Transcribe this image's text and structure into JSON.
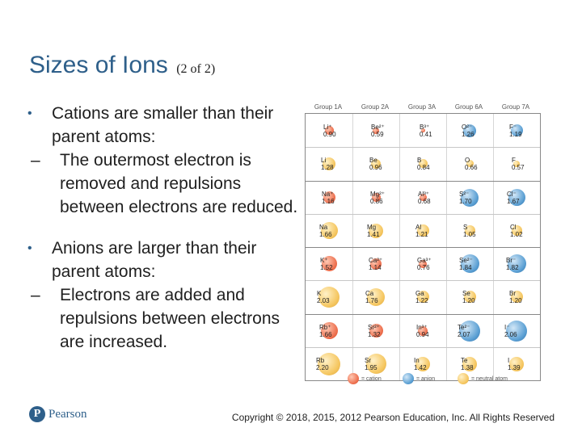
{
  "title": {
    "main": "Sizes of Ions",
    "sub": "(2 of 2)"
  },
  "bullets": [
    {
      "text": "Cations are smaller than their parent atoms:",
      "sub": "The outermost electron is removed and repulsions between electrons are reduced."
    },
    {
      "text": "Anions are larger than their parent atoms:",
      "sub": "Electrons are added and repulsions between electrons are increased."
    }
  ],
  "bullet_marker": "•",
  "sub_marker": "–",
  "table": {
    "groups": [
      "Group 1A",
      "Group 2A",
      "Group 3A",
      "Group 6A",
      "Group 7A"
    ],
    "rows": [
      [
        {
          "sym": "Li⁺",
          "val": "0.90",
          "kind": "cation",
          "size": 0.3
        },
        {
          "sym": "Be²⁺",
          "val": "0.59",
          "kind": "cation",
          "size": 0.22
        },
        {
          "sym": "B³⁺",
          "val": "0.41",
          "kind": "cation",
          "size": 0.15
        },
        {
          "sym": "O²⁻",
          "val": "1.26",
          "kind": "anion",
          "size": 0.45
        },
        {
          "sym": "F⁻",
          "val": "1.19",
          "kind": "anion",
          "size": 0.42
        }
      ],
      [
        {
          "sym": "Li",
          "val": "1.28",
          "kind": "neutral",
          "size": 0.45
        },
        {
          "sym": "Be",
          "val": "0.96",
          "kind": "neutral",
          "size": 0.34
        },
        {
          "sym": "B",
          "val": "0.84",
          "kind": "neutral",
          "size": 0.3
        },
        {
          "sym": "O",
          "val": "0.66",
          "kind": "neutral",
          "size": 0.24
        },
        {
          "sym": "F",
          "val": "0.57",
          "kind": "neutral",
          "size": 0.21
        }
      ],
      [
        {
          "sym": "Na⁺",
          "val": "1.16",
          "kind": "cation",
          "size": 0.41
        },
        {
          "sym": "Mg²⁺",
          "val": "0.86",
          "kind": "cation",
          "size": 0.31
        },
        {
          "sym": "Al³⁺",
          "val": "0.68",
          "kind": "cation",
          "size": 0.25
        },
        {
          "sym": "S²⁻",
          "val": "1.70",
          "kind": "anion",
          "size": 0.6
        },
        {
          "sym": "Cl⁻",
          "val": "1.67",
          "kind": "anion",
          "size": 0.59
        }
      ],
      [
        {
          "sym": "Na",
          "val": "1.66",
          "kind": "neutral",
          "size": 0.59
        },
        {
          "sym": "Mg",
          "val": "1.41",
          "kind": "neutral",
          "size": 0.5
        },
        {
          "sym": "Al",
          "val": "1.21",
          "kind": "neutral",
          "size": 0.43
        },
        {
          "sym": "S",
          "val": "1.05",
          "kind": "neutral",
          "size": 0.37
        },
        {
          "sym": "Cl",
          "val": "1.02",
          "kind": "neutral",
          "size": 0.36
        }
      ],
      [
        {
          "sym": "K⁺",
          "val": "1.52",
          "kind": "cation",
          "size": 0.54
        },
        {
          "sym": "Ca²⁺",
          "val": "1.14",
          "kind": "cation",
          "size": 0.4
        },
        {
          "sym": "Ga³⁺",
          "val": "0.76",
          "kind": "cation",
          "size": 0.27
        },
        {
          "sym": "Se²⁻",
          "val": "1.84",
          "kind": "anion",
          "size": 0.65
        },
        {
          "sym": "Br⁻",
          "val": "1.82",
          "kind": "anion",
          "size": 0.64
        }
      ],
      [
        {
          "sym": "K",
          "val": "2.03",
          "kind": "neutral",
          "size": 0.72
        },
        {
          "sym": "Ca",
          "val": "1.76",
          "kind": "neutral",
          "size": 0.62
        },
        {
          "sym": "Ga",
          "val": "1.22",
          "kind": "neutral",
          "size": 0.43
        },
        {
          "sym": "Se",
          "val": "1.20",
          "kind": "neutral",
          "size": 0.42
        },
        {
          "sym": "Br",
          "val": "1.20",
          "kind": "neutral",
          "size": 0.42
        }
      ],
      [
        {
          "sym": "Rb⁺",
          "val": "1.66",
          "kind": "cation",
          "size": 0.59
        },
        {
          "sym": "Sr²⁺",
          "val": "1.32",
          "kind": "cation",
          "size": 0.47
        },
        {
          "sym": "In³⁺",
          "val": "0.94",
          "kind": "cation",
          "size": 0.33
        },
        {
          "sym": "Te²⁻",
          "val": "2.07",
          "kind": "anion",
          "size": 0.73
        },
        {
          "sym": "I⁻",
          "val": "2.06",
          "kind": "anion",
          "size": 0.73
        }
      ],
      [
        {
          "sym": "Rb",
          "val": "2.20",
          "kind": "neutral",
          "size": 0.78
        },
        {
          "sym": "Sr",
          "val": "1.95",
          "kind": "neutral",
          "size": 0.69
        },
        {
          "sym": "In",
          "val": "1.42",
          "kind": "neutral",
          "size": 0.5
        },
        {
          "sym": "Te",
          "val": "1.38",
          "kind": "neutral",
          "size": 0.49
        },
        {
          "sym": "I",
          "val": "1.39",
          "kind": "neutral",
          "size": 0.49
        }
      ]
    ],
    "legend": [
      "= cation",
      "= anion",
      "= neutral atom"
    ]
  },
  "logo": {
    "mark": "P",
    "text": "Pearson"
  },
  "copyright": "Copyright © 2018, 2015, 2012 Pearson Education, Inc. All Rights Reserved",
  "colors": {
    "title": "#2e5f8a",
    "cation": "#ec6a48",
    "anion": "#5a9fd3",
    "neutral": "#f5c65f"
  }
}
